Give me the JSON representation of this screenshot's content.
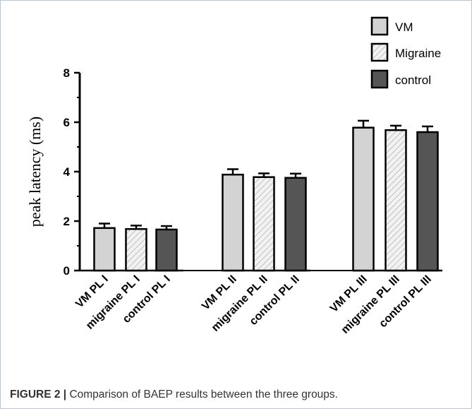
{
  "caption": {
    "label": "FIGURE 2 |",
    "text": " Comparison of BAEP results between the three groups."
  },
  "colors": {
    "vm": "#d3d3d3",
    "migraine_fill": "#f2f2f2",
    "migraine_hatch": "#b4b4b4",
    "control": "#555555",
    "axis": "#000000",
    "frame": "#b9c6cf"
  },
  "chart_data": {
    "type": "bar",
    "title": "",
    "ylabel": "peak latency  (ms)",
    "xlabel": "",
    "ylim": [
      0,
      8
    ],
    "yticks": [
      0,
      2,
      4,
      6,
      8
    ],
    "grid": false,
    "legend_position": "top-right",
    "legend": [
      {
        "label": "VM",
        "pattern": "solid-light"
      },
      {
        "label": "Migraine",
        "pattern": "hatched"
      },
      {
        "label": "control",
        "pattern": "solid-dark"
      }
    ],
    "categories": [
      "VM PL I",
      "migraine PL I",
      "control PL I",
      "VM PL II",
      "migraine PL II",
      "control PL II",
      "VM PL III",
      "migraine PL III",
      "control PL III"
    ],
    "values": [
      1.72,
      1.68,
      1.66,
      3.88,
      3.78,
      3.75,
      5.78,
      5.68,
      5.6
    ],
    "error": [
      0.18,
      0.14,
      0.14,
      0.22,
      0.15,
      0.17,
      0.28,
      0.18,
      0.23
    ],
    "groups": [
      "VM",
      "Migraine",
      "control",
      "VM",
      "Migraine",
      "control",
      "VM",
      "Migraine",
      "control"
    ]
  }
}
